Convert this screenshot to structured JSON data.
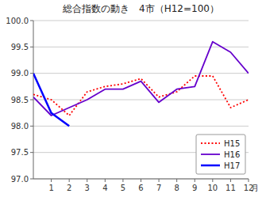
{
  "chart_data": {
    "type": "line",
    "title": "総合指数の動き　4市（H12=100）",
    "x_label": "月",
    "x": [
      0,
      1,
      2,
      3,
      4,
      5,
      6,
      7,
      8,
      9,
      10,
      11,
      12
    ],
    "series": [
      {
        "name": "H15",
        "color": "#ff0000",
        "line_style": "dotted",
        "values": [
          98.6,
          98.5,
          98.2,
          98.65,
          98.75,
          98.8,
          98.9,
          98.55,
          98.65,
          98.95,
          98.95,
          98.35,
          98.5
        ]
      },
      {
        "name": "H16",
        "color": "#6600cc",
        "line_style": "solid",
        "values": [
          98.55,
          98.2,
          98.35,
          98.5,
          98.7,
          98.7,
          98.85,
          98.45,
          98.7,
          98.75,
          99.6,
          99.4,
          99.0
        ]
      },
      {
        "name": "H17",
        "color": "#0000ff",
        "line_style": "solid",
        "values": [
          99.0,
          98.25,
          98.0,
          null,
          null,
          null,
          null,
          null,
          null,
          null,
          null,
          null,
          null
        ]
      }
    ],
    "xlim": [
      0,
      12
    ],
    "xticks": [
      1,
      2,
      3,
      4,
      5,
      6,
      7,
      8,
      9,
      10,
      11,
      12
    ],
    "ylim": [
      97,
      100
    ],
    "yticks": [
      {
        "value": 97,
        "label": "97.0"
      },
      97.5,
      {
        "value": 98,
        "label": "98.0"
      },
      98.5,
      {
        "value": 99,
        "label": "99.0"
      },
      99.5,
      {
        "value": 100,
        "label": "100.0"
      }
    ],
    "grid": "y",
    "legend": "lower right"
  }
}
